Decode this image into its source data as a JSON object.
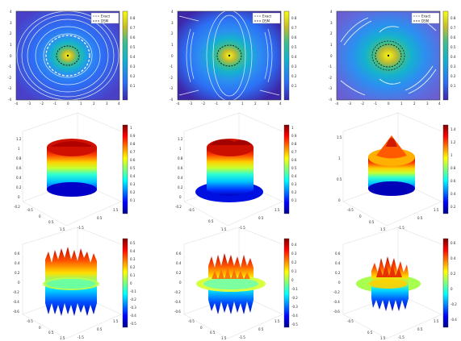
{
  "figure": {
    "colorbars": {
      "c1": [
        "0.8",
        "0.7",
        "0.6",
        "0.5",
        "0.4",
        "0.3",
        "0.2",
        "0.1"
      ],
      "c2": [
        "0.8",
        "0.7",
        "0.6",
        "0.5",
        "0.4",
        "0.3",
        "0.2",
        "0.1"
      ],
      "c3": [
        "0.8",
        "0.7",
        "0.6",
        "0.5",
        "0.4",
        "0.3",
        "0.2",
        "0.1"
      ],
      "s1": [
        "1",
        "0.9",
        "0.8",
        "0.7",
        "0.6",
        "0.5",
        "0.4",
        "0.3",
        "0.2",
        "0.1"
      ],
      "s2": [
        "1",
        "0.9",
        "0.8",
        "0.7",
        "0.6",
        "0.5",
        "0.4",
        "0.3",
        "0.2",
        "0.1"
      ],
      "s3": [
        "1.4",
        "1.2",
        "1",
        "0.8",
        "0.6",
        "0.4",
        "0.2"
      ],
      "e1": [
        "0.5",
        "0.4",
        "0.3",
        "0.2",
        "0.1",
        "0",
        "-0.1",
        "-0.2",
        "-0.3",
        "-0.4",
        "-0.5"
      ],
      "e2": [
        "0.4",
        "0.3",
        "0.2",
        "0.1",
        "0",
        "-0.1",
        "-0.2",
        "-0.3",
        "-0.4",
        "-0.5"
      ],
      "e3": [
        "0.6",
        "0.4",
        "0.2",
        "0",
        "-0.2",
        "-0.4"
      ]
    }
  },
  "chart_data": [
    {
      "type": "heatmap",
      "panel": "row1-col1",
      "xticks": [
        "-4",
        "-3",
        "-2",
        "-1",
        "0",
        "1",
        "2",
        "3",
        "4"
      ],
      "yticks": [
        "4",
        "3",
        "2",
        "1",
        "0",
        "-1",
        "-2",
        "-3",
        "-4"
      ],
      "xlim": [
        -4,
        4
      ],
      "ylim": [
        -4,
        4
      ],
      "clim": [
        0,
        0.9
      ],
      "legend": [
        "Exact",
        "DSM"
      ],
      "legend_position": "top-right",
      "series": [
        {
          "name": "Exact",
          "style": "dashed",
          "color": "#ffffff"
        },
        {
          "name": "DSM",
          "style": "dashed",
          "color": "#111111"
        }
      ]
    },
    {
      "type": "heatmap",
      "panel": "row1-col2",
      "xticks": [
        "-4",
        "-3",
        "-2",
        "-1",
        "0",
        "1",
        "2",
        "3",
        "4"
      ],
      "yticks": [
        "4",
        "3",
        "2",
        "1",
        "0",
        "-1",
        "-2",
        "-3",
        "-4"
      ],
      "xlim": [
        -4,
        4
      ],
      "ylim": [
        -4,
        4
      ],
      "clim": [
        0,
        0.9
      ],
      "legend": [
        "Exact",
        "DSM"
      ],
      "legend_position": "top-right",
      "series": [
        {
          "name": "Exact",
          "style": "dashed",
          "color": "#ffffff"
        },
        {
          "name": "DSM",
          "style": "dashed",
          "color": "#111111"
        }
      ]
    },
    {
      "type": "heatmap",
      "panel": "row1-col3",
      "xticks": [
        "-4",
        "-3",
        "-2",
        "-1",
        "0",
        "1",
        "2",
        "3",
        "4"
      ],
      "yticks": [
        "4",
        "3",
        "2",
        "1",
        "0",
        "-1",
        "-2",
        "-3",
        "-4"
      ],
      "xlim": [
        -4,
        4
      ],
      "ylim": [
        -4,
        4
      ],
      "clim": [
        0,
        0.9
      ],
      "legend": [
        "Exact",
        "DSM"
      ],
      "legend_position": "top-right",
      "series": [
        {
          "name": "Exact",
          "style": "dashed",
          "color": "#ffffff"
        },
        {
          "name": "DSM",
          "style": "dashed",
          "color": "#111111"
        }
      ]
    },
    {
      "type": "area",
      "panel": "row2-col1",
      "surface": "3d",
      "zticks": [
        "1.2",
        "1",
        "0.8",
        "0.6",
        "0.4",
        "0.2",
        "0",
        "-0.2"
      ],
      "xticks": [
        "-0.5",
        "0",
        "0.5",
        "1.5"
      ],
      "yticks": [
        "-1.5",
        "0.5",
        "1.5"
      ],
      "clim": [
        0,
        1.1
      ],
      "peak_z": 1.05,
      "base_z": 0
    },
    {
      "type": "area",
      "panel": "row2-col2",
      "surface": "3d",
      "zticks": [
        "1.2",
        "1",
        "0.8",
        "0.6",
        "0.4",
        "0.2",
        "0",
        "-0.2"
      ],
      "xticks": [
        "-0.5",
        "0.5",
        "1.5"
      ],
      "yticks": [
        "-1.5",
        "0.5",
        "1.5"
      ],
      "clim": [
        0,
        1.1
      ],
      "peak_z": 1.0,
      "base_z": 0
    },
    {
      "type": "area",
      "panel": "row2-col3",
      "surface": "3d",
      "zticks": [
        "1.5",
        "1",
        "0.5",
        "0"
      ],
      "xticks": [
        "-0.5",
        "0",
        "0.5",
        "1.5"
      ],
      "yticks": [
        "-1.5",
        "0.5",
        "1.5"
      ],
      "clim": [
        0,
        1.5
      ],
      "peak_z": 1.4,
      "base_z": 0
    },
    {
      "type": "area",
      "panel": "row3-col1",
      "surface": "3d",
      "zticks": [
        "0.6",
        "0.4",
        "0.2",
        "0",
        "-0.2",
        "-0.4",
        "-0.6"
      ],
      "xticks": [
        "-0.5",
        "0",
        "0.5",
        "1.5"
      ],
      "yticks": [
        "-1.5",
        "0.5",
        "1.5"
      ],
      "clim": [
        -0.5,
        0.5
      ]
    },
    {
      "type": "area",
      "panel": "row3-col2",
      "surface": "3d",
      "zticks": [
        "0.6",
        "0.4",
        "0.2",
        "0",
        "-0.2",
        "-0.4",
        "-0.6"
      ],
      "xticks": [
        "-0.5",
        "0",
        "0.5",
        "1.5"
      ],
      "yticks": [
        "-1.5",
        "0.5",
        "1.5"
      ],
      "clim": [
        -0.5,
        0.45
      ]
    },
    {
      "type": "area",
      "panel": "row3-col3",
      "surface": "3d",
      "zticks": [
        "0.6",
        "0.4",
        "0.2",
        "0",
        "-0.2",
        "-0.4",
        "-0.6"
      ],
      "xticks": [
        "-0.5",
        "0.5",
        "1.5"
      ],
      "yticks": [
        "-1.5",
        "0.5",
        "1.5"
      ],
      "clim": [
        -0.45,
        0.65
      ]
    }
  ]
}
